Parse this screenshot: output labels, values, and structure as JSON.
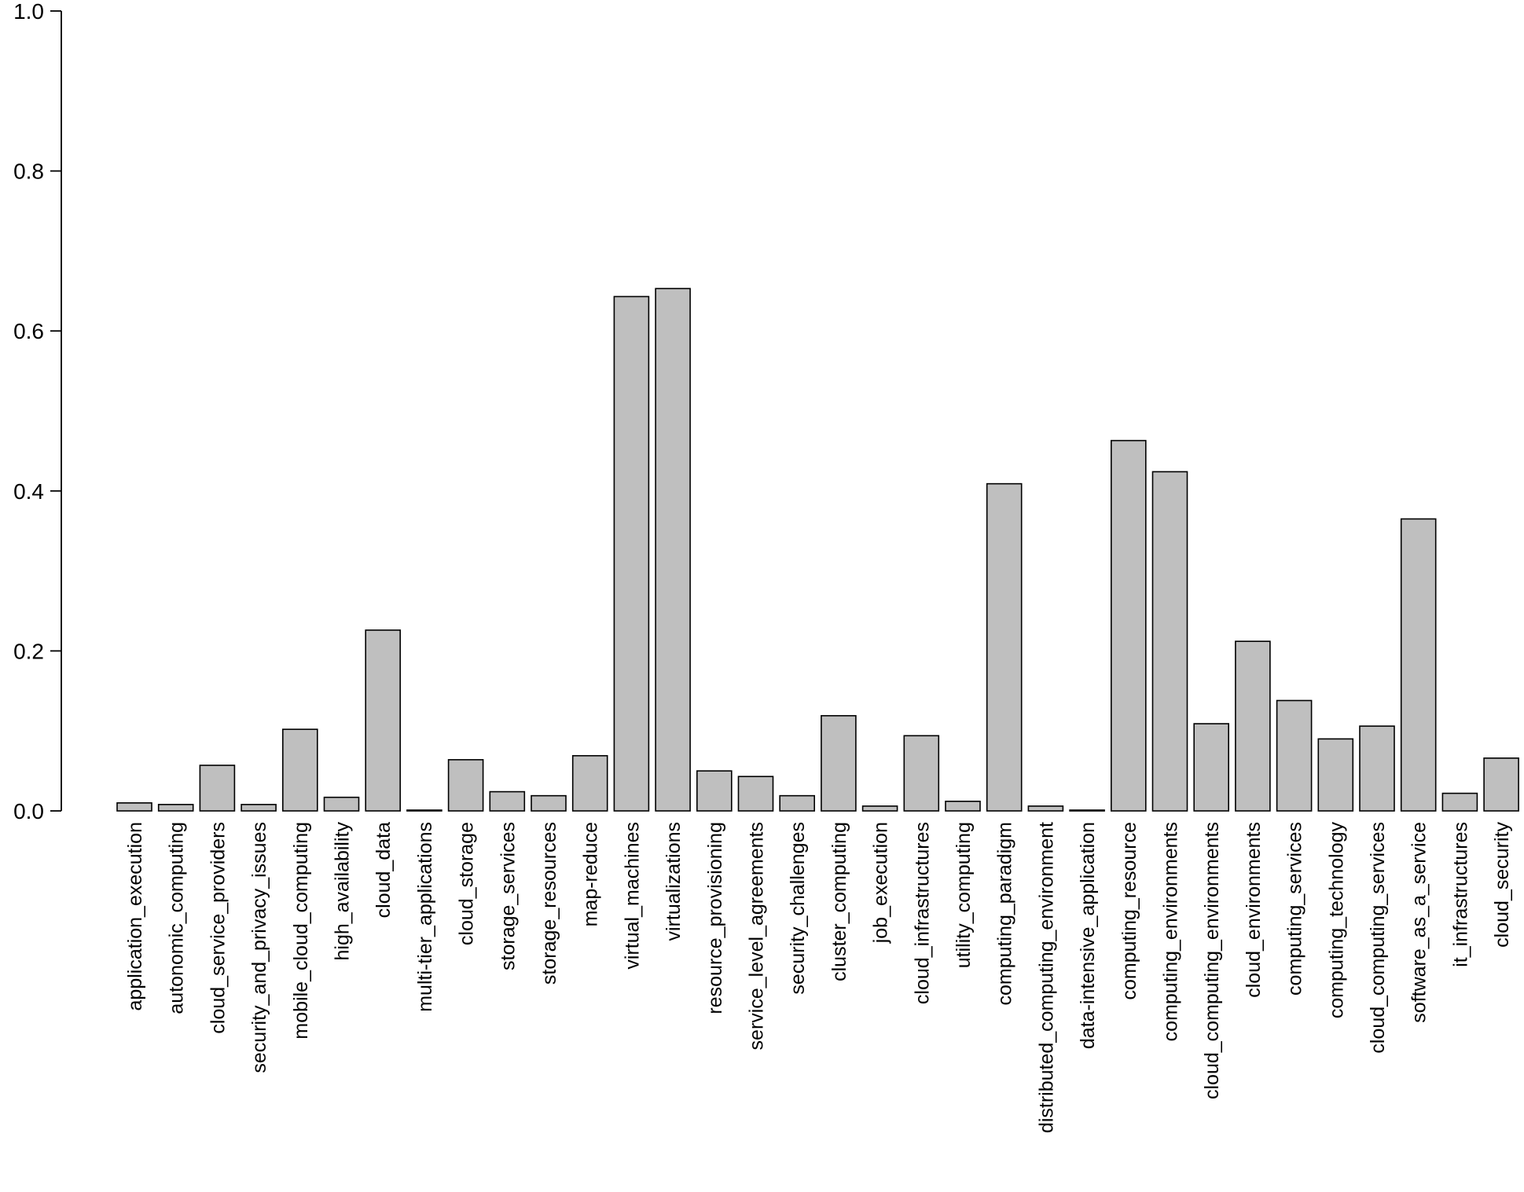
{
  "chart_data": {
    "type": "bar",
    "title": "",
    "xlabel": "",
    "ylabel": "",
    "ylim": [
      0,
      1.0
    ],
    "yticks": [
      0.0,
      0.2,
      0.4,
      0.6,
      0.8,
      1.0
    ],
    "ytick_labels": [
      "0.0",
      "0.2",
      "0.4",
      "0.6",
      "0.8",
      "1.0"
    ],
    "bar_fill": "#bfbfbf",
    "bar_edge": "#000000",
    "categories": [
      "application_execution",
      "autonomic_computing",
      "cloud_service_providers",
      "security_and_privacy_issues",
      "mobile_cloud_computing",
      "high_availability",
      "cloud_data",
      "multi-tier_applications",
      "cloud_storage",
      "storage_services",
      "storage_resources",
      "map-reduce",
      "virtual_machines",
      "virtualizations",
      "resource_provisioning",
      "service_level_agreements",
      "security_challenges",
      "cluster_computing",
      "job_execution",
      "cloud_infrastructures",
      "utility_computing",
      "computing_paradigm",
      "distributed_computing_environment",
      "data-intensive_application",
      "computing_resource",
      "computing_environments",
      "cloud_computing_environments",
      "cloud_environments",
      "computing_services",
      "computing_technology",
      "cloud_computing_services",
      "software_as_a_service",
      "it_infrastructures",
      "cloud_security"
    ],
    "values": [
      0.01,
      0.008,
      0.057,
      0.008,
      0.102,
      0.017,
      0.226,
      0.001,
      0.064,
      0.024,
      0.019,
      0.069,
      0.643,
      0.653,
      0.05,
      0.043,
      0.019,
      0.119,
      0.006,
      0.094,
      0.012,
      0.409,
      0.006,
      0.001,
      0.463,
      0.424,
      0.109,
      0.212,
      0.138,
      0.09,
      0.106,
      0.365,
      0.022,
      0.066
    ]
  }
}
